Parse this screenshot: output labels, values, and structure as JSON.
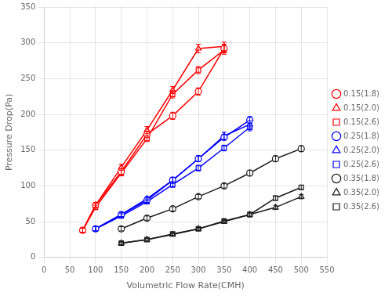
{
  "chart_data": {
    "type": "line",
    "xlabel": "Volumetric Flow Rate(CMH)",
    "ylabel": "Pressure Drop(Pa)",
    "xlim": [
      0,
      550
    ],
    "ylim": [
      0,
      350
    ],
    "xticks": [
      0,
      50,
      100,
      150,
      200,
      250,
      300,
      350,
      400,
      450,
      500,
      550
    ],
    "yticks": [
      0,
      50,
      100,
      150,
      200,
      250,
      300,
      350
    ],
    "grid": true,
    "legend": "right",
    "series": [
      {
        "name": "0.15(1.8)",
        "color": "#ff0000",
        "marker": "circle",
        "line_style": "solid",
        "x": [
          75,
          100,
          150,
          200,
          250,
          300,
          350
        ],
        "values": [
          38,
          73,
          120,
          172,
          198,
          232,
          292
        ],
        "yerr": [
          3,
          3,
          4,
          4,
          5,
          5,
          6
        ]
      },
      {
        "name": "0.15(2.0)",
        "color": "#ff0000",
        "marker": "triangle",
        "line_style": "solid",
        "x": [
          75,
          100,
          150,
          200,
          250,
          300,
          350
        ],
        "values": [
          38,
          73,
          126,
          178,
          234,
          292,
          295
        ],
        "yerr": [
          3,
          3,
          4,
          5,
          5,
          6,
          6
        ]
      },
      {
        "name": "0.15(2.6)",
        "color": "#ff0000",
        "marker": "square",
        "line_style": "solid",
        "x": [
          75,
          100,
          150,
          200,
          250,
          300,
          350
        ],
        "values": [
          38,
          70,
          118,
          166,
          228,
          262,
          290
        ],
        "yerr": [
          3,
          3,
          4,
          4,
          5,
          5,
          6
        ]
      },
      {
        "name": "0.25(1.8)",
        "color": "#0000ff",
        "marker": "circle",
        "line_style": "solid",
        "x": [
          100,
          150,
          200,
          250,
          300,
          350,
          400
        ],
        "values": [
          40,
          60,
          80,
          108,
          138,
          168,
          192
        ],
        "yerr": [
          3,
          3,
          3,
          4,
          4,
          4,
          5
        ]
      },
      {
        "name": "0.25(2.0)",
        "color": "#0000ff",
        "marker": "triangle",
        "line_style": "solid",
        "x": [
          100,
          150,
          200,
          250,
          300,
          350,
          400
        ],
        "values": [
          40,
          60,
          82,
          108,
          138,
          170,
          186
        ],
        "yerr": [
          3,
          3,
          3,
          4,
          4,
          5,
          5
        ]
      },
      {
        "name": "0.25(2.6)",
        "color": "#0000ff",
        "marker": "square",
        "line_style": "solid",
        "x": [
          100,
          150,
          200,
          250,
          300,
          350,
          400
        ],
        "values": [
          40,
          58,
          78,
          102,
          125,
          153,
          182
        ],
        "yerr": [
          3,
          3,
          3,
          4,
          4,
          4,
          5
        ]
      },
      {
        "name": "0.35(1.8)",
        "color": "#1a1a1a",
        "marker": "circle",
        "line_style": "solid",
        "x": [
          150,
          200,
          250,
          300,
          350,
          400,
          450,
          500
        ],
        "values": [
          40,
          55,
          68,
          85,
          100,
          118,
          138,
          152
        ],
        "yerr": [
          3,
          3,
          3,
          3,
          3,
          4,
          4,
          4
        ]
      },
      {
        "name": "0.35(2.0)",
        "color": "#1a1a1a",
        "marker": "triangle",
        "line_style": "solid",
        "x": [
          150,
          200,
          250,
          300,
          350,
          400,
          450,
          500
        ],
        "values": [
          20,
          25,
          32,
          40,
          50,
          60,
          70,
          85
        ],
        "yerr": [
          2,
          2,
          2,
          2,
          2,
          3,
          3,
          3
        ]
      },
      {
        "name": "0.35(2.6)",
        "color": "#1a1a1a",
        "marker": "square",
        "line_style": "solid",
        "x": [
          150,
          200,
          250,
          300,
          350,
          400,
          450,
          500
        ],
        "values": [
          20,
          25,
          33,
          40,
          51,
          60,
          83,
          98
        ],
        "yerr": [
          2,
          2,
          2,
          2,
          2,
          3,
          3,
          3
        ]
      }
    ]
  }
}
